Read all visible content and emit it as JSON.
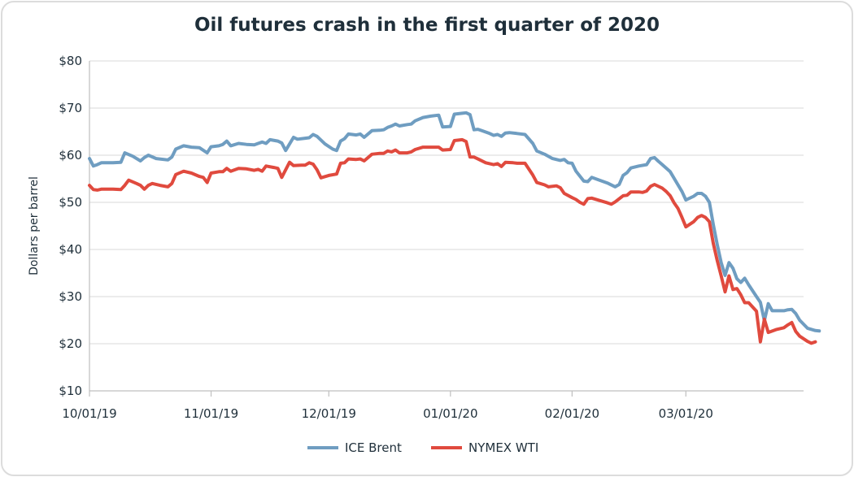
{
  "chart_data": {
    "type": "line",
    "title": "Oil futures crash in the first quarter of 2020",
    "xlabel": "",
    "ylabel": "Dollars per barrel",
    "ylim": [
      10,
      80
    ],
    "y_ticks": [
      10,
      20,
      30,
      40,
      50,
      60,
      70,
      80
    ],
    "y_tick_labels": [
      "$10",
      "$20",
      "$30",
      "$40",
      "$50",
      "$60",
      "$70",
      "$80"
    ],
    "x_range_days": [
      0,
      182
    ],
    "x_ticks": [
      {
        "day": 0,
        "label": "10/01/19"
      },
      {
        "day": 31,
        "label": "11/01/19"
      },
      {
        "day": 61,
        "label": "12/01/19"
      },
      {
        "day": 92,
        "label": "01/01/20"
      },
      {
        "day": 123,
        "label": "02/01/20"
      },
      {
        "day": 152,
        "label": "03/01/20"
      }
    ],
    "legend_position": "bottom-center",
    "series": [
      {
        "name": "ICE Brent",
        "color": "#6f9dc1",
        "points": [
          [
            0,
            59.3
          ],
          [
            1,
            57.7
          ],
          [
            2,
            58.0
          ],
          [
            3,
            58.4
          ],
          [
            6,
            58.4
          ],
          [
            8,
            58.5
          ],
          [
            9,
            60.5
          ],
          [
            11,
            59.8
          ],
          [
            13,
            58.8
          ],
          [
            14,
            59.5
          ],
          [
            15,
            60.0
          ],
          [
            17,
            59.3
          ],
          [
            20,
            59.0
          ],
          [
            21,
            59.6
          ],
          [
            22,
            61.3
          ],
          [
            24,
            62.0
          ],
          [
            26,
            61.7
          ],
          [
            28,
            61.6
          ],
          [
            30,
            60.5
          ],
          [
            31,
            61.8
          ],
          [
            33,
            62.0
          ],
          [
            34,
            62.3
          ],
          [
            35,
            63.0
          ],
          [
            36,
            62.0
          ],
          [
            38,
            62.5
          ],
          [
            40,
            62.3
          ],
          [
            42,
            62.2
          ],
          [
            43,
            62.5
          ],
          [
            44,
            62.8
          ],
          [
            45,
            62.5
          ],
          [
            46,
            63.3
          ],
          [
            48,
            63.0
          ],
          [
            49,
            62.6
          ],
          [
            50,
            61.0
          ],
          [
            52,
            63.8
          ],
          [
            53,
            63.4
          ],
          [
            55,
            63.6
          ],
          [
            56,
            63.7
          ],
          [
            57,
            64.4
          ],
          [
            58,
            64.0
          ],
          [
            60,
            62.4
          ],
          [
            62,
            61.3
          ],
          [
            63,
            61.0
          ],
          [
            64,
            63.0
          ],
          [
            65,
            63.5
          ],
          [
            66,
            64.5
          ],
          [
            68,
            64.3
          ],
          [
            69,
            64.5
          ],
          [
            70,
            63.8
          ],
          [
            72,
            65.2
          ],
          [
            74,
            65.3
          ],
          [
            75,
            65.4
          ],
          [
            76,
            65.9
          ],
          [
            77,
            66.2
          ],
          [
            78,
            66.6
          ],
          [
            79,
            66.2
          ],
          [
            81,
            66.5
          ],
          [
            82,
            66.6
          ],
          [
            83,
            67.3
          ],
          [
            85,
            68.0
          ],
          [
            87,
            68.3
          ],
          [
            89,
            68.5
          ],
          [
            90,
            66.0
          ],
          [
            92,
            66.1
          ],
          [
            93,
            68.7
          ],
          [
            95,
            68.9
          ],
          [
            96,
            69.0
          ],
          [
            97,
            68.6
          ],
          [
            98,
            65.4
          ],
          [
            99,
            65.5
          ],
          [
            100,
            65.2
          ],
          [
            102,
            64.6
          ],
          [
            103,
            64.2
          ],
          [
            104,
            64.4
          ],
          [
            105,
            64.0
          ],
          [
            106,
            64.7
          ],
          [
            107,
            64.8
          ],
          [
            109,
            64.6
          ],
          [
            111,
            64.4
          ],
          [
            113,
            62.5
          ],
          [
            114,
            60.9
          ],
          [
            116,
            60.2
          ],
          [
            118,
            59.3
          ],
          [
            120,
            58.9
          ],
          [
            121,
            59.1
          ],
          [
            122,
            58.4
          ],
          [
            123,
            58.3
          ],
          [
            124,
            56.6
          ],
          [
            126,
            54.5
          ],
          [
            127,
            54.4
          ],
          [
            128,
            55.3
          ],
          [
            130,
            54.7
          ],
          [
            132,
            54.1
          ],
          [
            134,
            53.3
          ],
          [
            135,
            53.8
          ],
          [
            136,
            55.7
          ],
          [
            137,
            56.3
          ],
          [
            138,
            57.3
          ],
          [
            140,
            57.7
          ],
          [
            142,
            58.0
          ],
          [
            143,
            59.3
          ],
          [
            144,
            59.5
          ],
          [
            145,
            58.7
          ],
          [
            146,
            58.0
          ],
          [
            148,
            56.5
          ],
          [
            150,
            53.7
          ],
          [
            151,
            52.3
          ],
          [
            152,
            50.5
          ],
          [
            154,
            51.3
          ],
          [
            155,
            51.9
          ],
          [
            156,
            51.9
          ],
          [
            157,
            51.3
          ],
          [
            158,
            50.0
          ],
          [
            159,
            45.3
          ],
          [
            160,
            41.0
          ],
          [
            161,
            37.2
          ],
          [
            162,
            34.5
          ],
          [
            163,
            37.2
          ],
          [
            164,
            36.0
          ],
          [
            165,
            33.8
          ],
          [
            166,
            33.0
          ],
          [
            167,
            33.9
          ],
          [
            168,
            32.5
          ],
          [
            170,
            30.0
          ],
          [
            171,
            28.8
          ],
          [
            172,
            24.9
          ],
          [
            173,
            28.5
          ],
          [
            174,
            27.0
          ],
          [
            176,
            27.0
          ],
          [
            177,
            27.0
          ],
          [
            178,
            27.2
          ],
          [
            179,
            27.3
          ],
          [
            180,
            26.4
          ],
          [
            181,
            25.0
          ],
          [
            183,
            23.3
          ],
          [
            185,
            22.8
          ],
          [
            186,
            22.7
          ]
        ]
      },
      {
        "name": "NYMEX WTI",
        "color": "#e04a3e",
        "points": [
          [
            0,
            53.6
          ],
          [
            1,
            52.7
          ],
          [
            2,
            52.6
          ],
          [
            3,
            52.8
          ],
          [
            6,
            52.8
          ],
          [
            8,
            52.7
          ],
          [
            9,
            53.6
          ],
          [
            10,
            54.7
          ],
          [
            12,
            54.0
          ],
          [
            13,
            53.6
          ],
          [
            14,
            52.8
          ],
          [
            15,
            53.6
          ],
          [
            16,
            54.0
          ],
          [
            18,
            53.6
          ],
          [
            20,
            53.3
          ],
          [
            21,
            54.0
          ],
          [
            22,
            55.9
          ],
          [
            24,
            56.6
          ],
          [
            26,
            56.2
          ],
          [
            28,
            55.5
          ],
          [
            29,
            55.3
          ],
          [
            30,
            54.2
          ],
          [
            31,
            56.2
          ],
          [
            33,
            56.5
          ],
          [
            34,
            56.5
          ],
          [
            35,
            57.2
          ],
          [
            36,
            56.6
          ],
          [
            38,
            57.2
          ],
          [
            40,
            57.1
          ],
          [
            42,
            56.8
          ],
          [
            43,
            57.0
          ],
          [
            44,
            56.6
          ],
          [
            45,
            57.7
          ],
          [
            47,
            57.4
          ],
          [
            48,
            57.2
          ],
          [
            49,
            55.3
          ],
          [
            51,
            58.5
          ],
          [
            52,
            57.8
          ],
          [
            54,
            57.9
          ],
          [
            55,
            57.9
          ],
          [
            56,
            58.4
          ],
          [
            57,
            58.1
          ],
          [
            58,
            56.9
          ],
          [
            59,
            55.2
          ],
          [
            61,
            55.7
          ],
          [
            63,
            56.0
          ],
          [
            64,
            58.3
          ],
          [
            65,
            58.4
          ],
          [
            66,
            59.2
          ],
          [
            68,
            59.1
          ],
          [
            69,
            59.2
          ],
          [
            70,
            58.8
          ],
          [
            72,
            60.2
          ],
          [
            74,
            60.4
          ],
          [
            75,
            60.4
          ],
          [
            76,
            60.9
          ],
          [
            77,
            60.7
          ],
          [
            78,
            61.1
          ],
          [
            79,
            60.5
          ],
          [
            81,
            60.5
          ],
          [
            82,
            60.7
          ],
          [
            83,
            61.2
          ],
          [
            85,
            61.7
          ],
          [
            87,
            61.7
          ],
          [
            89,
            61.7
          ],
          [
            90,
            61.1
          ],
          [
            92,
            61.2
          ],
          [
            93,
            63.1
          ],
          [
            95,
            63.3
          ],
          [
            96,
            62.9
          ],
          [
            97,
            59.6
          ],
          [
            98,
            59.6
          ],
          [
            99,
            59.2
          ],
          [
            101,
            58.4
          ],
          [
            103,
            58.0
          ],
          [
            104,
            58.2
          ],
          [
            105,
            57.6
          ],
          [
            106,
            58.5
          ],
          [
            108,
            58.4
          ],
          [
            109,
            58.3
          ],
          [
            111,
            58.3
          ],
          [
            113,
            55.8
          ],
          [
            114,
            54.2
          ],
          [
            116,
            53.7
          ],
          [
            117,
            53.3
          ],
          [
            119,
            53.5
          ],
          [
            120,
            53.1
          ],
          [
            121,
            51.9
          ],
          [
            123,
            51.0
          ],
          [
            124,
            50.6
          ],
          [
            125,
            50.0
          ],
          [
            126,
            49.6
          ],
          [
            127,
            50.8
          ],
          [
            128,
            50.9
          ],
          [
            130,
            50.4
          ],
          [
            132,
            49.9
          ],
          [
            133,
            49.6
          ],
          [
            134,
            50.1
          ],
          [
            136,
            51.4
          ],
          [
            137,
            51.5
          ],
          [
            138,
            52.2
          ],
          [
            140,
            52.2
          ],
          [
            141,
            52.1
          ],
          [
            142,
            52.4
          ],
          [
            143,
            53.4
          ],
          [
            144,
            53.8
          ],
          [
            146,
            53.0
          ],
          [
            147,
            52.3
          ],
          [
            148,
            51.4
          ],
          [
            149,
            49.9
          ],
          [
            150,
            48.7
          ],
          [
            151,
            46.8
          ],
          [
            152,
            44.8
          ],
          [
            154,
            45.9
          ],
          [
            155,
            46.8
          ],
          [
            156,
            47.2
          ],
          [
            157,
            46.8
          ],
          [
            158,
            45.9
          ],
          [
            159,
            41.3
          ],
          [
            160,
            37.6
          ],
          [
            161,
            34.4
          ],
          [
            162,
            31.0
          ],
          [
            163,
            34.4
          ],
          [
            164,
            31.5
          ],
          [
            165,
            31.7
          ],
          [
            166,
            30.4
          ],
          [
            167,
            28.7
          ],
          [
            168,
            28.7
          ],
          [
            170,
            26.9
          ],
          [
            171,
            20.4
          ],
          [
            172,
            25.2
          ],
          [
            173,
            22.4
          ],
          [
            175,
            23.0
          ],
          [
            177,
            23.4
          ],
          [
            178,
            24.0
          ],
          [
            179,
            24.5
          ],
          [
            180,
            22.6
          ],
          [
            181,
            21.6
          ],
          [
            183,
            20.5
          ],
          [
            184,
            20.1
          ],
          [
            185,
            20.4
          ]
        ]
      }
    ]
  }
}
